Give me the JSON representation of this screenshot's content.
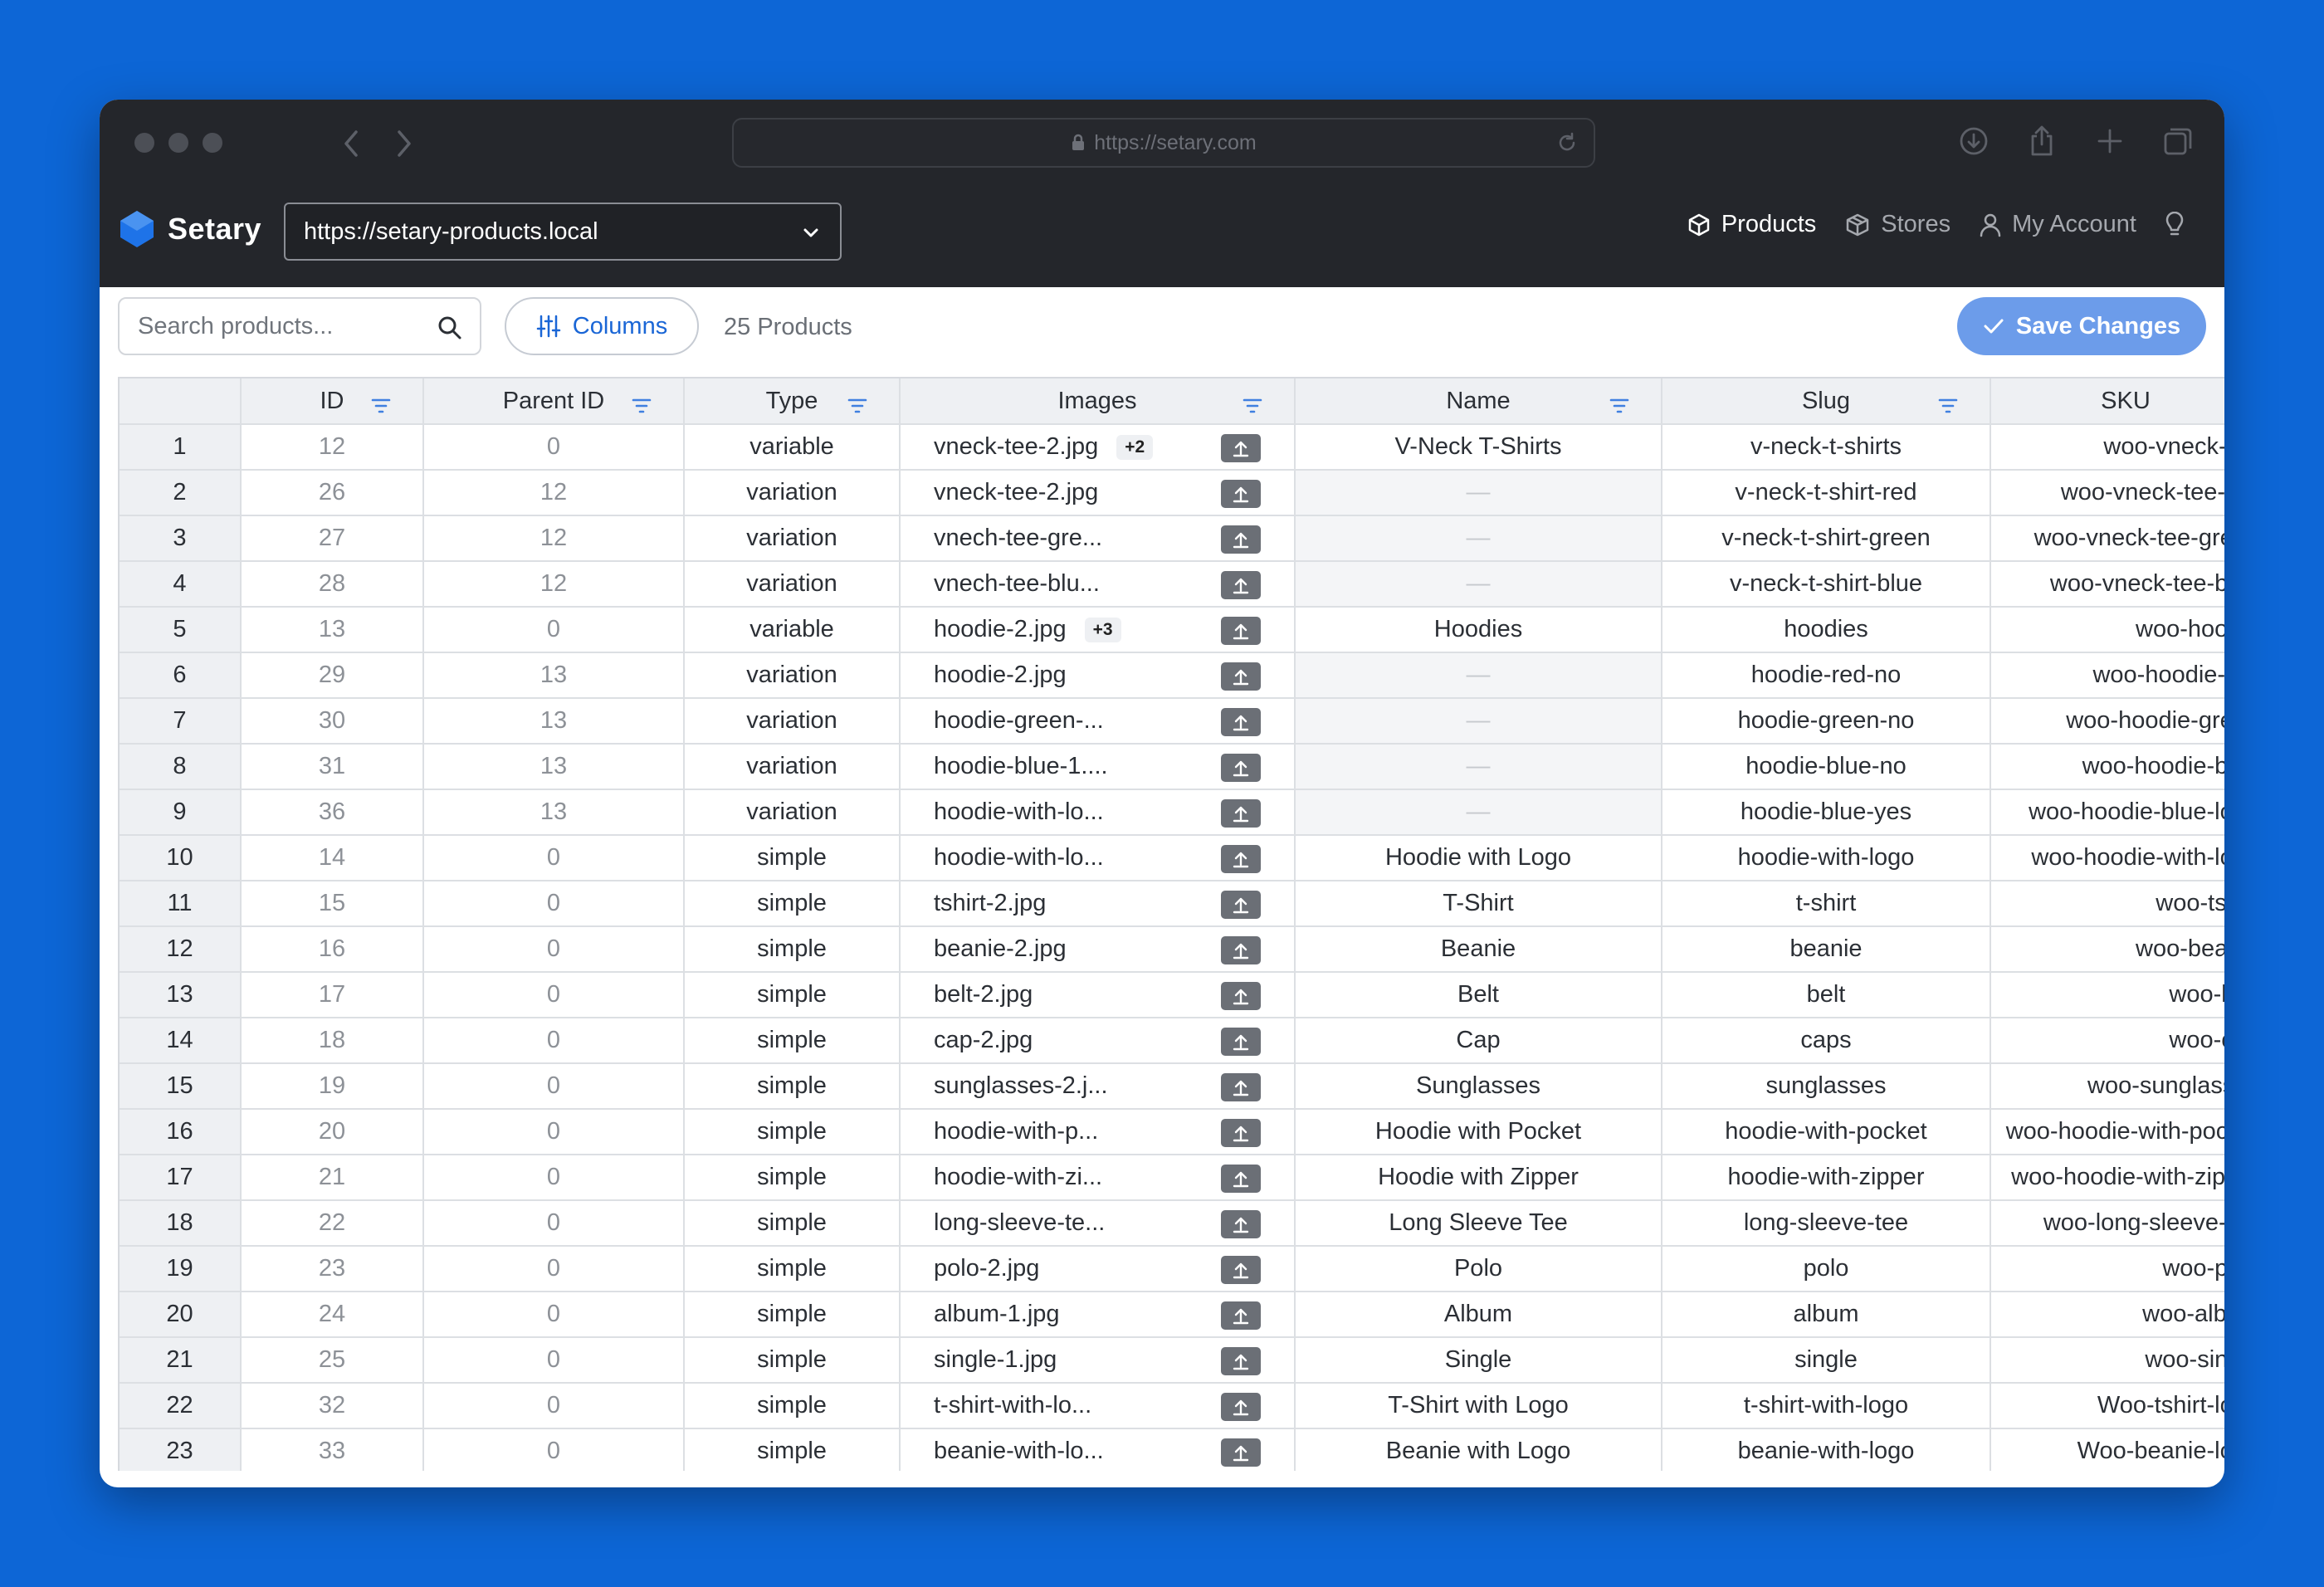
{
  "browser": {
    "url": "https://setary.com"
  },
  "app": {
    "brand": "Setary",
    "store_url": "https://setary-products.local",
    "nav": {
      "products": "Products",
      "stores": "Stores",
      "account": "My Account"
    }
  },
  "toolbar": {
    "search_placeholder": "Search products...",
    "columns_label": "Columns",
    "product_count": "25 Products",
    "save_label": "Save Changes"
  },
  "table": {
    "headers": {
      "id": "ID",
      "parent_id": "Parent ID",
      "type": "Type",
      "images": "Images",
      "name": "Name",
      "slug": "Slug",
      "sku": "SKU"
    },
    "rows": [
      {
        "n": "1",
        "id": "12",
        "parent": "0",
        "type": "variable",
        "image": "vneck-tee-2.jpg",
        "more": "+2",
        "name": "V-Neck T-Shirts",
        "slug": "v-neck-t-shirts",
        "sku": "woo-vneck-tee"
      },
      {
        "n": "2",
        "id": "26",
        "parent": "12",
        "type": "variation",
        "image": "vneck-tee-2.jpg",
        "more": "",
        "name": "—",
        "slug": "v-neck-t-shirt-red",
        "sku": "woo-vneck-tee-red"
      },
      {
        "n": "3",
        "id": "27",
        "parent": "12",
        "type": "variation",
        "image": "vnech-tee-gre...",
        "more": "",
        "name": "—",
        "slug": "v-neck-t-shirt-green",
        "sku": "woo-vneck-tee-green"
      },
      {
        "n": "4",
        "id": "28",
        "parent": "12",
        "type": "variation",
        "image": "vnech-tee-blu...",
        "more": "",
        "name": "—",
        "slug": "v-neck-t-shirt-blue",
        "sku": "woo-vneck-tee-blue"
      },
      {
        "n": "5",
        "id": "13",
        "parent": "0",
        "type": "variable",
        "image": "hoodie-2.jpg",
        "more": "+3",
        "name": "Hoodies",
        "slug": "hoodies",
        "sku": "woo-hoodie"
      },
      {
        "n": "6",
        "id": "29",
        "parent": "13",
        "type": "variation",
        "image": "hoodie-2.jpg",
        "more": "",
        "name": "—",
        "slug": "hoodie-red-no",
        "sku": "woo-hoodie-red"
      },
      {
        "n": "7",
        "id": "30",
        "parent": "13",
        "type": "variation",
        "image": "hoodie-green-...",
        "more": "",
        "name": "—",
        "slug": "hoodie-green-no",
        "sku": "woo-hoodie-green"
      },
      {
        "n": "8",
        "id": "31",
        "parent": "13",
        "type": "variation",
        "image": "hoodie-blue-1....",
        "more": "",
        "name": "—",
        "slug": "hoodie-blue-no",
        "sku": "woo-hoodie-blue"
      },
      {
        "n": "9",
        "id": "36",
        "parent": "13",
        "type": "variation",
        "image": "hoodie-with-lo...",
        "more": "",
        "name": "—",
        "slug": "hoodie-blue-yes",
        "sku": "woo-hoodie-blue-logo"
      },
      {
        "n": "10",
        "id": "14",
        "parent": "0",
        "type": "simple",
        "image": "hoodie-with-lo...",
        "more": "",
        "name": "Hoodie with Logo",
        "slug": "hoodie-with-logo",
        "sku": "woo-hoodie-with-logo"
      },
      {
        "n": "11",
        "id": "15",
        "parent": "0",
        "type": "simple",
        "image": "tshirt-2.jpg",
        "more": "",
        "name": "T-Shirt",
        "slug": "t-shirt",
        "sku": "woo-tshirt"
      },
      {
        "n": "12",
        "id": "16",
        "parent": "0",
        "type": "simple",
        "image": "beanie-2.jpg",
        "more": "",
        "name": "Beanie",
        "slug": "beanie",
        "sku": "woo-beanie"
      },
      {
        "n": "13",
        "id": "17",
        "parent": "0",
        "type": "simple",
        "image": "belt-2.jpg",
        "more": "",
        "name": "Belt",
        "slug": "belt",
        "sku": "woo-belt"
      },
      {
        "n": "14",
        "id": "18",
        "parent": "0",
        "type": "simple",
        "image": "cap-2.jpg",
        "more": "",
        "name": "Cap",
        "slug": "caps",
        "sku": "woo-cap"
      },
      {
        "n": "15",
        "id": "19",
        "parent": "0",
        "type": "simple",
        "image": "sunglasses-2.j...",
        "more": "",
        "name": "Sunglasses",
        "slug": "sunglasses",
        "sku": "woo-sunglasses"
      },
      {
        "n": "16",
        "id": "20",
        "parent": "0",
        "type": "simple",
        "image": "hoodie-with-p...",
        "more": "",
        "name": "Hoodie with Pocket",
        "slug": "hoodie-with-pocket",
        "sku": "woo-hoodie-with-pocket"
      },
      {
        "n": "17",
        "id": "21",
        "parent": "0",
        "type": "simple",
        "image": "hoodie-with-zi...",
        "more": "",
        "name": "Hoodie with Zipper",
        "slug": "hoodie-with-zipper",
        "sku": "woo-hoodie-with-zipper"
      },
      {
        "n": "18",
        "id": "22",
        "parent": "0",
        "type": "simple",
        "image": "long-sleeve-te...",
        "more": "",
        "name": "Long Sleeve Tee",
        "slug": "long-sleeve-tee",
        "sku": "woo-long-sleeve-tee"
      },
      {
        "n": "19",
        "id": "23",
        "parent": "0",
        "type": "simple",
        "image": "polo-2.jpg",
        "more": "",
        "name": "Polo",
        "slug": "polo",
        "sku": "woo-polo"
      },
      {
        "n": "20",
        "id": "24",
        "parent": "0",
        "type": "simple",
        "image": "album-1.jpg",
        "more": "",
        "name": "Album",
        "slug": "album",
        "sku": "woo-album"
      },
      {
        "n": "21",
        "id": "25",
        "parent": "0",
        "type": "simple",
        "image": "single-1.jpg",
        "more": "",
        "name": "Single",
        "slug": "single",
        "sku": "woo-single"
      },
      {
        "n": "22",
        "id": "32",
        "parent": "0",
        "type": "simple",
        "image": "t-shirt-with-lo...",
        "more": "",
        "name": "T-Shirt with Logo",
        "slug": "t-shirt-with-logo",
        "sku": "Woo-tshirt-logo"
      },
      {
        "n": "23",
        "id": "33",
        "parent": "0",
        "type": "simple",
        "image": "beanie-with-lo...",
        "more": "",
        "name": "Beanie with Logo",
        "slug": "beanie-with-logo",
        "sku": "Woo-beanie-logo"
      }
    ]
  },
  "colors": {
    "background": "#0d66d6",
    "chrome": "#24262b",
    "accent": "#1a66d6",
    "save_button": "#6c9cea"
  }
}
